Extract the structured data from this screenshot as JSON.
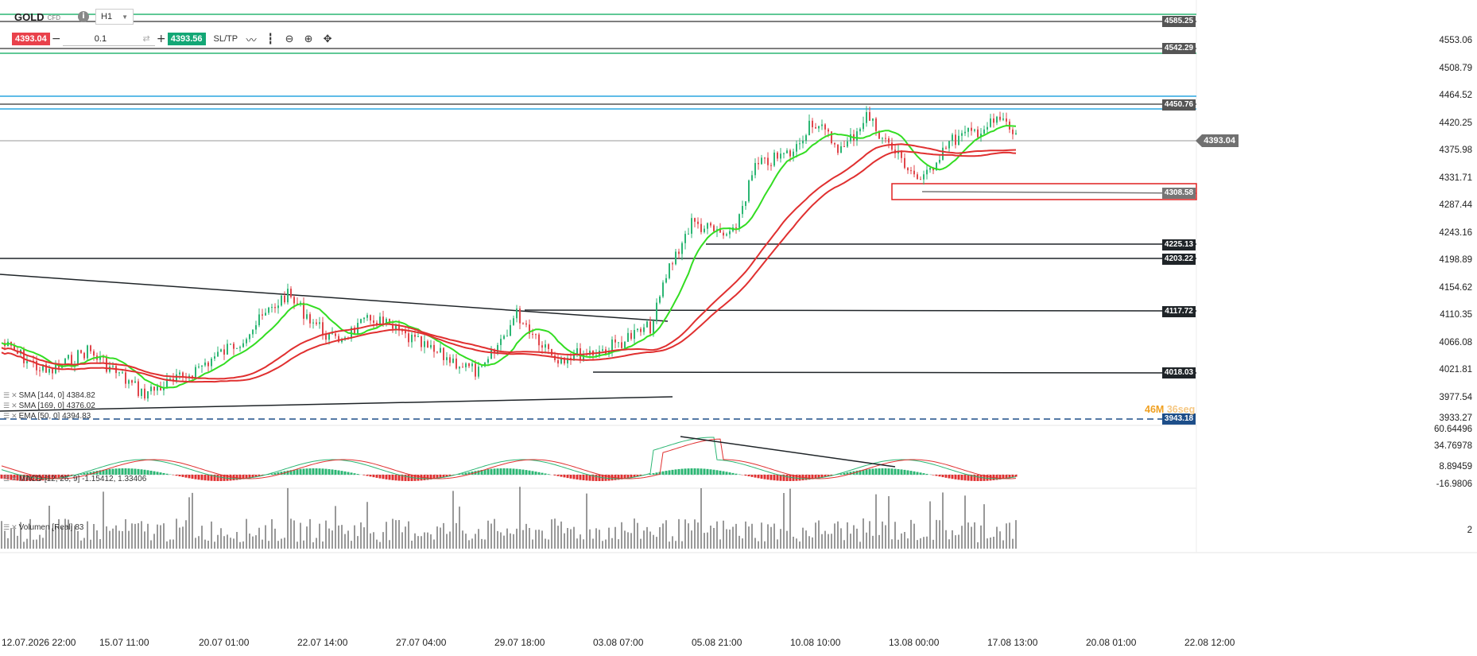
{
  "symbol": {
    "name": "GOLD",
    "type": "CFD",
    "timeframe": "H1"
  },
  "trade": {
    "sell_price": "4393.04",
    "quantity": "0.1",
    "buy_price": "4393.56",
    "sltp_label": "SL/TP"
  },
  "tools": [
    "line-chart-icon",
    "candle-chart-icon",
    "zoom-out-icon",
    "zoom-in-icon",
    "crosshair-icon"
  ],
  "current_price": "4393.04",
  "countdown": {
    "minutes": "46M",
    "seconds": "36seg"
  },
  "price_axis": [
    "4553.06",
    "4508.79",
    "4464.52",
    "4420.25",
    "4375.98",
    "4331.71",
    "4287.44",
    "4243.16",
    "4198.89",
    "4154.62",
    "4110.35",
    "4066.08",
    "4021.81",
    "3977.54",
    "3933.27"
  ],
  "macd_axis": [
    "60.64496",
    "34.76978",
    "8.89459",
    "-16.9806"
  ],
  "volume_axis": [
    "2"
  ],
  "time_axis": [
    "12.07.2026 22:00",
    "15.07 11:00",
    "20.07 01:00",
    "22.07 14:00",
    "27.07 04:00",
    "29.07 18:00",
    "03.08 07:00",
    "05.08 21:00",
    "10.08 10:00",
    "13.08 00:00",
    "17.08 13:00",
    "20.08 01:00",
    "22.08 12:00"
  ],
  "line_tags": [
    {
      "label": "4585.25",
      "color": "#555555"
    },
    {
      "label": "4542.29",
      "color": "#555555"
    },
    {
      "label": "4450.76",
      "color": "#555555"
    },
    {
      "label": "4308.58",
      "color": "#757575"
    },
    {
      "label": "4225.13",
      "color": "#1f2428"
    },
    {
      "label": "4203.22",
      "color": "#1f2428"
    },
    {
      "label": "4117.72",
      "color": "#1f2428"
    },
    {
      "label": "4018.03",
      "color": "#1f2428"
    },
    {
      "label": "3943.18",
      "color": "#1d4e89"
    }
  ],
  "legends": {
    "sma144": "SMA [144, 0] 4384.82",
    "sma169": "SMA [169, 0] 4376.02",
    "ema50": "EMA [50, 0] 4394.83",
    "macd": "MACD [12, 26, 9] -1.15412, 1.33406",
    "volume": "Volumen [Real] 83"
  },
  "colors": {
    "sell": "#e9414b",
    "buy": "#13a775",
    "ema": "#33dd22",
    "sma": "#e03030",
    "support": "#1f2428",
    "cyan_level": "#2aa6e0",
    "green_level": "#2bb673"
  }
}
